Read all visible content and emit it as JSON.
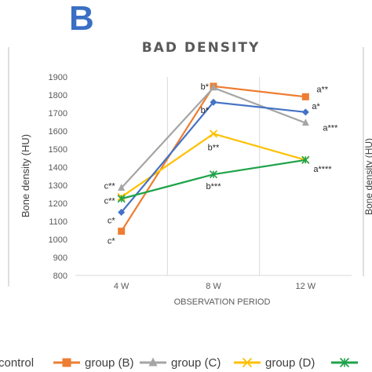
{
  "panel_letter": "B",
  "colors": {
    "panel_letter": "#3a6fc4",
    "text": "#595959",
    "grid": "#d9d9d9",
    "legend_text": "#404040",
    "left_panel_edge": "#bfbfbf"
  },
  "chart_data": {
    "type": "line",
    "title": "BAD DENSITY",
    "xlabel": "OBSERVATION PERIOD",
    "ylabel": "Bone density (HU)",
    "categories": [
      "4 W",
      "8 W",
      "12 W"
    ],
    "ylim": [
      800,
      1900
    ],
    "yticks": [
      800,
      900,
      1000,
      1100,
      1200,
      1300,
      1400,
      1500,
      1600,
      1700,
      1800,
      1900
    ],
    "grid": "vertical",
    "legend_position": "bottom",
    "series": [
      {
        "name": "group (B)",
        "color": "#ed7d31",
        "marker": "square",
        "values": [
          1045,
          1848,
          1790
        ],
        "labels": [
          "c*",
          "b*",
          "a**"
        ]
      },
      {
        "name": "group (C)",
        "color": "#a5a5a5",
        "marker": "triangle",
        "values": [
          1285,
          1840,
          1645
        ],
        "labels": [
          "c**",
          "",
          "a***"
        ]
      },
      {
        "name": "group (D)",
        "color": "#ffc000",
        "marker": "x",
        "values": [
          1235,
          1585,
          1440
        ],
        "labels": [
          "",
          "b**",
          ""
        ]
      },
      {
        "name": "",
        "color": "#4472c4",
        "marker": "diamond",
        "values": [
          1150,
          1760,
          1705
        ],
        "labels": [
          "c*",
          "b*",
          "a*"
        ]
      },
      {
        "name": "",
        "color": "#1fa34a",
        "marker": "asterisk",
        "values": [
          1225,
          1360,
          1440
        ],
        "labels": [
          "c**",
          "b***",
          "a****"
        ]
      }
    ],
    "legend": [
      {
        "label": "control",
        "series": null
      },
      {
        "label": "group (B)",
        "series": 0
      },
      {
        "label": "group (C)",
        "series": 1
      },
      {
        "label": "group (D)",
        "series": 2
      },
      {
        "label": "",
        "series": 4
      }
    ]
  }
}
